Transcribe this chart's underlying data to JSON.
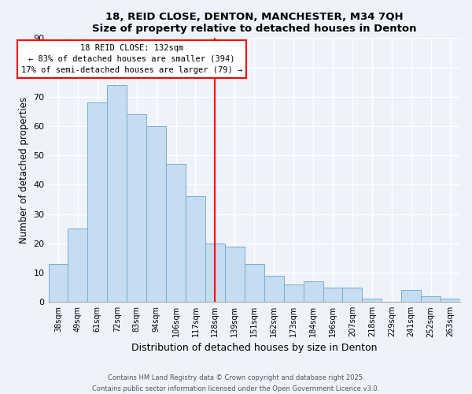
{
  "title1": "18, REID CLOSE, DENTON, MANCHESTER, M34 7QH",
  "title2": "Size of property relative to detached houses in Denton",
  "xlabel": "Distribution of detached houses by size in Denton",
  "ylabel": "Number of detached properties",
  "categories": [
    "38sqm",
    "49sqm",
    "61sqm",
    "72sqm",
    "83sqm",
    "94sqm",
    "106sqm",
    "117sqm",
    "128sqm",
    "139sqm",
    "151sqm",
    "162sqm",
    "173sqm",
    "184sqm",
    "196sqm",
    "207sqm",
    "218sqm",
    "229sqm",
    "241sqm",
    "252sqm",
    "263sqm"
  ],
  "values": [
    13,
    25,
    68,
    74,
    64,
    60,
    47,
    36,
    20,
    19,
    13,
    9,
    6,
    7,
    5,
    5,
    1,
    0,
    4,
    2,
    1
  ],
  "bar_color": "#c6dcf0",
  "bar_edge_color": "#7aaecc",
  "vline_x": 8,
  "vline_color": "red",
  "annotation_title": "18 REID CLOSE: 132sqm",
  "annotation_line1": "← 83% of detached houses are smaller (394)",
  "annotation_line2": "17% of semi-detached houses are larger (79) →",
  "annotation_box_color": "white",
  "annotation_box_edge": "red",
  "ylim": [
    0,
    90
  ],
  "yticks": [
    0,
    10,
    20,
    30,
    40,
    50,
    60,
    70,
    80,
    90
  ],
  "footnote1": "Contains HM Land Registry data © Crown copyright and database right 2025.",
  "footnote2": "Contains public sector information licensed under the Open Government Licence v3.0.",
  "bg_color": "#eef2fb"
}
